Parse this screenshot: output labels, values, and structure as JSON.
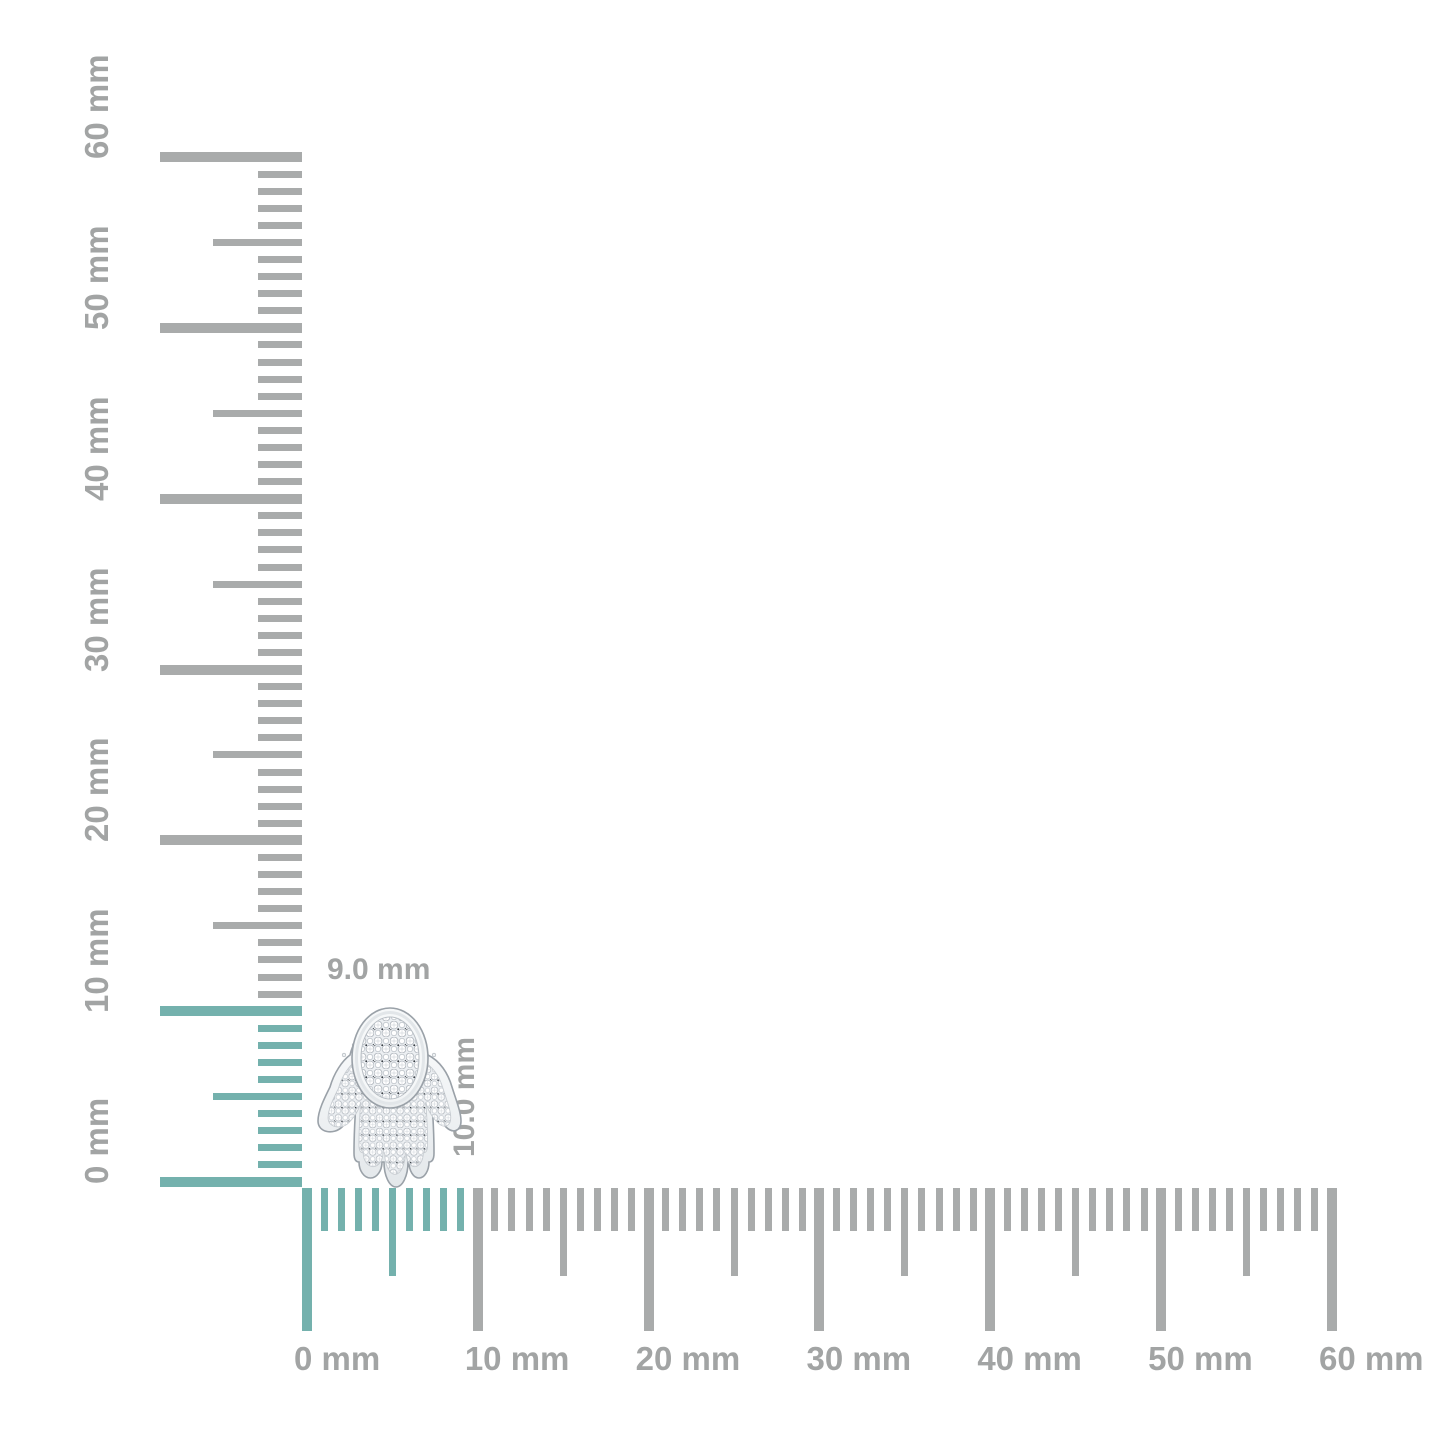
{
  "product": {
    "name": "diamond hamsa hand stud earring",
    "width_label": "9.0 mm",
    "height_label": "10.0 mm",
    "width_mm": 9.0,
    "height_mm": 10.0
  },
  "rulers": {
    "unit": "mm",
    "min_mm": 0,
    "max_mm": 60,
    "minor_step_mm": 1,
    "half_step_mm": 5,
    "major_step_mm": 10,
    "vertical": {
      "labels": [
        "0 mm",
        "10 mm",
        "20 mm",
        "30 mm",
        "40 mm",
        "50 mm",
        "60 mm"
      ],
      "highlight_through_mm": 10
    },
    "horizontal": {
      "labels": [
        "0 mm",
        "10 mm",
        "20 mm",
        "30 mm",
        "40 mm",
        "50 mm",
        "60 mm"
      ],
      "highlight_through_mm": 9
    }
  },
  "colors": {
    "background": "#ffffff",
    "highlight_teal": "#74b1ad",
    "tick_gray": "#a9abab",
    "label_gray": "#a2a4a4",
    "metal_light": "#f4f6f8",
    "metal_outline": "#9aa1a8"
  }
}
